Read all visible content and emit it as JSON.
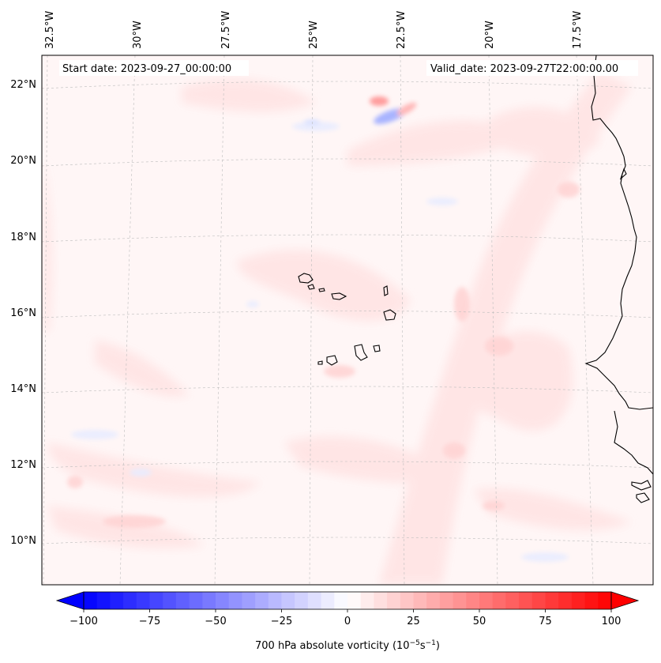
{
  "map": {
    "start_date": "Start date: 2023-09-27_00:00:00",
    "valid_date": "Valid_date: 2023-09-27T22:00:00.00",
    "lon_labels": [
      "32.5°W",
      "30°W",
      "27.5°W",
      "25°W",
      "22.5°W",
      "20°W",
      "17.5°W"
    ],
    "lat_labels": [
      "22°N",
      "20°N",
      "18°N",
      "16°N",
      "14°N",
      "12°N",
      "10°N"
    ],
    "field": "700 hPa absolute vorticity",
    "field_colormap": "bwr",
    "colors": {
      "coastline": "#000000",
      "gridline": "#b0b0b0",
      "negative_extreme": "#0000ff",
      "zero": "#ffffff",
      "positive_extreme": "#ff0000"
    }
  },
  "colorbar": {
    "ticks": [
      "−100",
      "−75",
      "−50",
      "−25",
      "0",
      "25",
      "50",
      "75",
      "100"
    ],
    "min": -100,
    "max": 100,
    "extend": "both",
    "label": "700 hPa absolute vorticity (10",
    "label_exp1": "−5",
    "label_mid": "s",
    "label_exp2": "−1",
    "label_end": ")"
  }
}
